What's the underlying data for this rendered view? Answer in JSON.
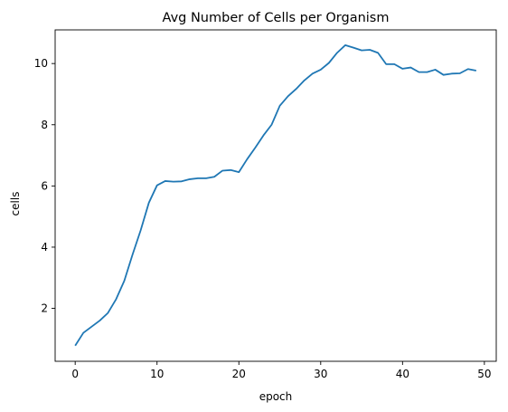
{
  "chart_data": {
    "type": "line",
    "title": "Avg Number of Cells per Organism",
    "xlabel": "epoch",
    "ylabel": "cells",
    "xlim": [
      -2.45,
      51.45
    ],
    "ylim": [
      0.27,
      11.1
    ],
    "xticks": [
      0,
      10,
      20,
      30,
      40,
      50
    ],
    "yticks": [
      2,
      4,
      6,
      8,
      10
    ],
    "grid": false,
    "series": [
      {
        "color": "#1f77b4",
        "x": [
          0,
          1,
          2,
          3,
          4,
          5,
          6,
          7,
          8,
          9,
          10,
          11,
          12,
          13,
          14,
          15,
          16,
          17,
          18,
          19,
          20,
          21,
          22,
          23,
          24,
          25,
          26,
          27,
          28,
          29,
          30,
          31,
          32,
          33,
          34,
          35,
          36,
          37,
          38,
          39,
          40,
          41,
          42,
          43,
          44,
          45,
          46,
          47,
          48,
          49
        ],
        "values": [
          0.78,
          1.2,
          1.4,
          1.6,
          1.85,
          2.3,
          2.9,
          3.75,
          4.55,
          5.45,
          6.02,
          6.16,
          6.14,
          6.15,
          6.22,
          6.25,
          6.25,
          6.3,
          6.5,
          6.52,
          6.45,
          6.87,
          7.25,
          7.65,
          8.0,
          8.62,
          8.93,
          9.17,
          9.45,
          9.67,
          9.8,
          10.02,
          10.35,
          10.6,
          10.52,
          10.43,
          10.45,
          10.35,
          9.98,
          9.98,
          9.83,
          9.87,
          9.72,
          9.72,
          9.8,
          9.63,
          9.67,
          9.68,
          9.82,
          9.77
        ]
      }
    ]
  }
}
